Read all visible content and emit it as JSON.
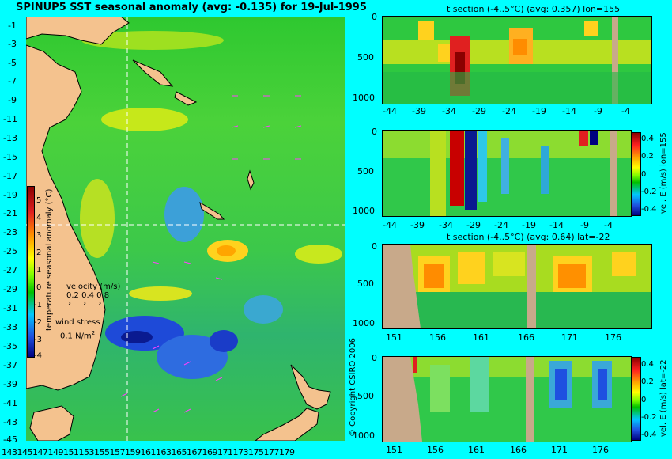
{
  "map": {
    "title": "SPINUP5 SST seasonal anomaly (avg: -0.135) for 19-Jul-1995",
    "lat_labels": [
      "-1",
      "-3",
      "-5",
      "-7",
      "-9",
      "-11",
      "-13",
      "-15",
      "-17",
      "-19",
      "-21",
      "-23",
      "-25",
      "-27",
      "-29",
      "-31",
      "-33",
      "-35",
      "-37",
      "-39",
      "-41",
      "-43",
      "-45"
    ],
    "lon_labels": [
      "143",
      "145",
      "147",
      "149",
      "151",
      "153",
      "155",
      "157",
      "159",
      "161",
      "163",
      "165",
      "167",
      "169",
      "171",
      "173",
      "175",
      "177",
      "179"
    ],
    "colorbar": {
      "ticks": [
        "5",
        "4",
        "3",
        "2",
        "1",
        "0",
        "-1",
        "-2",
        "-3",
        "-4"
      ],
      "label": "temperature seasonal anomaly (°C)"
    },
    "velocity": {
      "label": "velocity (m/s)",
      "values": "0.2 0.4 0.8"
    },
    "wind": {
      "label": "wind stress",
      "value": "0.1 N/m",
      "sup": "2"
    },
    "copyright": "© Copyright CSIRO 2006"
  },
  "panels": [
    {
      "title": "t section (-4..5°C) (avg: 0.357) lon=155",
      "y_ticks": [
        "0",
        "500",
        "1000"
      ],
      "x_ticks": [
        "-44",
        "-39",
        "-34",
        "-29",
        "-24",
        "-19",
        "-14",
        "-9",
        "-4"
      ]
    },
    {
      "title": "",
      "y_ticks": [
        "0",
        "500",
        "1000"
      ],
      "x_ticks": [
        "-44",
        "-39",
        "-34",
        "-29",
        "-24",
        "-19",
        "-14",
        "-9",
        "-4"
      ],
      "cbar_ticks": [
        "0.4",
        "0.2",
        "0",
        "-0.2",
        "-0.4"
      ],
      "cbar_label": "vel. E (m/s) lon=155"
    },
    {
      "title": "t section (-4..5°C) (avg: 0.64) lat=-22",
      "y_ticks": [
        "0",
        "500",
        "1000"
      ],
      "x_ticks": [
        "151",
        "156",
        "161",
        "166",
        "171",
        "176"
      ]
    },
    {
      "title": "",
      "y_ticks": [
        "0",
        "500",
        "1000"
      ],
      "x_ticks": [
        "151",
        "156",
        "161",
        "166",
        "171",
        "176"
      ],
      "cbar_ticks": [
        "0.4",
        "0.2",
        "0",
        "-0.2",
        "-0.4"
      ],
      "cbar_label": "vel. E (m/s) lat=-22"
    }
  ],
  "colors": {
    "background": "#00ffff",
    "land": "#f4c28e",
    "section_land": "#c8a98a",
    "crosshair": "#ffffff"
  }
}
